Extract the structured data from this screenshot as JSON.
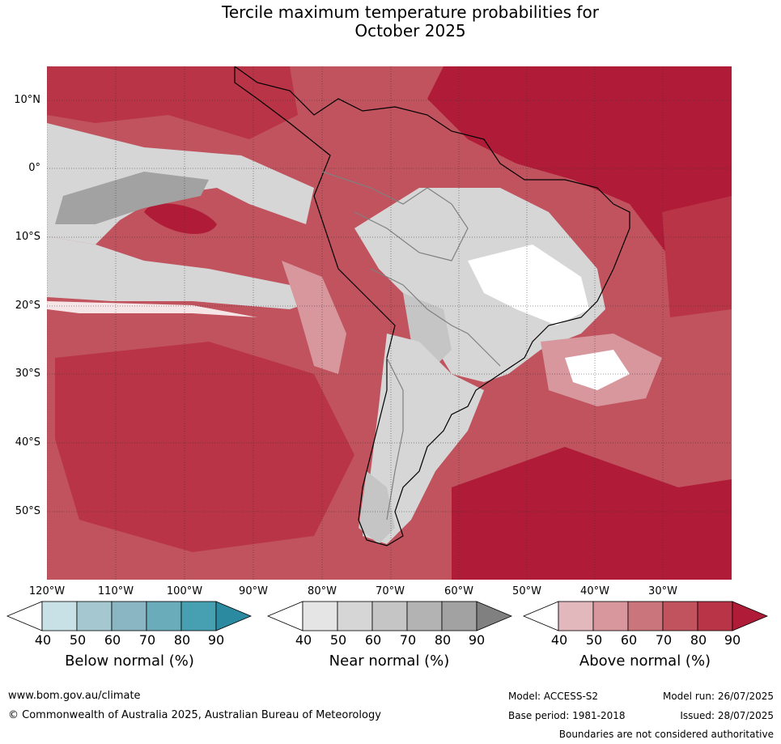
{
  "title": {
    "line1": "Tercile maximum temperature probabilities for",
    "line2": "October 2025"
  },
  "axes": {
    "latitude_labels": [
      "10°N",
      "0°",
      "10°S",
      "20°S",
      "30°S",
      "40°S",
      "50°S"
    ],
    "longitude_labels": [
      "120°W",
      "110°W",
      "100°W",
      "90°W",
      "80°W",
      "70°W",
      "60°W",
      "50°W",
      "40°W",
      "30°W"
    ]
  },
  "legends": [
    {
      "title": "Below normal (%)",
      "ticks": [
        "40",
        "50",
        "60",
        "70",
        "80",
        "90"
      ],
      "colors": [
        "#ffffff",
        "#c7e1e7",
        "#a5c8d0",
        "#89b6c2",
        "#6aacba",
        "#47a0b1",
        "#2c8aa0"
      ]
    },
    {
      "title": "Near normal (%)",
      "ticks": [
        "40",
        "50",
        "60",
        "70",
        "80",
        "90"
      ],
      "colors": [
        "#ffffff",
        "#e5e5e5",
        "#d6d6d6",
        "#c5c5c5",
        "#b3b3b3",
        "#a2a2a2",
        "#808080"
      ]
    },
    {
      "title": "Above normal (%)",
      "ticks": [
        "40",
        "50",
        "60",
        "70",
        "80",
        "90"
      ],
      "colors": [
        "#ffffff",
        "#e3b8bd",
        "#d7979d",
        "#ca747c",
        "#c0535e",
        "#b93447",
        "#b01c38"
      ]
    }
  ],
  "map_colors": {
    "above_90": "#b01c38",
    "above_80": "#b93447",
    "above_70": "#c0535e",
    "above_60": "#ca747c",
    "above_50": "#d7979d",
    "near_40": "#d6d6d6",
    "near_60": "#c5c5c5",
    "near_80": "#a2a2a2",
    "white": "#ffffff",
    "land_border": "#000000",
    "country_border": "#808080"
  },
  "footer": {
    "website": "www.bom.gov.au/climate",
    "copyright": "© Commonwealth of Australia 2025, Australian Bureau of Meteorology",
    "model": "Model: ACCESS-S2",
    "model_run": "Model run: 26/07/2025",
    "base_period": "Base period: 1981-2018",
    "issued": "Issued: 28/07/2025",
    "disclaimer": "Boundaries are not considered authoritative"
  }
}
